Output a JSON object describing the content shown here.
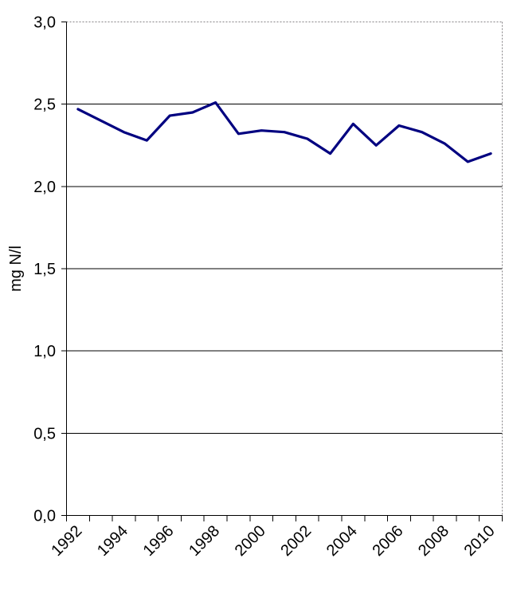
{
  "chart_data": {
    "type": "line",
    "title": "",
    "xlabel": "",
    "ylabel": "mg N/l",
    "categories": [
      1992,
      1993,
      1994,
      1995,
      1996,
      1997,
      1998,
      1999,
      2000,
      2001,
      2002,
      2003,
      2004,
      2005,
      2006,
      2007,
      2008,
      2009,
      2010
    ],
    "series": [
      {
        "name": "mg N/l",
        "values": [
          2.47,
          2.4,
          2.33,
          2.28,
          2.43,
          2.45,
          2.51,
          2.32,
          2.34,
          2.33,
          2.29,
          2.2,
          2.38,
          2.25,
          2.37,
          2.33,
          2.26,
          2.15,
          2.2
        ]
      }
    ],
    "ylim": [
      0.0,
      3.0
    ],
    "ytick_step": 0.5,
    "ytick_labels": [
      "0,0",
      "0,5",
      "1,0",
      "1,5",
      "2,0",
      "2,5",
      "3,0"
    ],
    "xtick_labels": [
      "1992",
      "1994",
      "1996",
      "1998",
      "2000",
      "2002",
      "2004",
      "2006",
      "2008",
      "2010"
    ],
    "xtick_label_every": 2,
    "x_label_rotation_deg": -45,
    "grid": "horizontal-solid",
    "legend": "none",
    "decimal_separator": ",",
    "colors": {
      "line": "#000080",
      "gridline": "#000000",
      "axis": "#000000",
      "plot_border_dotted": "#848284",
      "background": "#ffffff",
      "text": "#000000"
    }
  }
}
